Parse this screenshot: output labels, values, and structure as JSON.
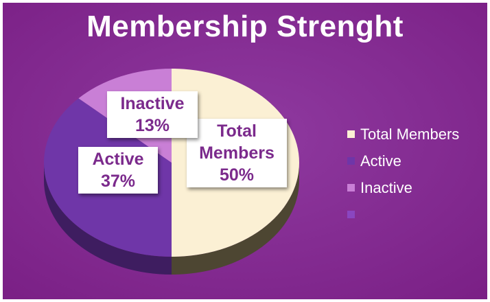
{
  "chart_data": {
    "type": "pie",
    "title": "Membership Strenght",
    "categories": [
      "Total Members",
      "Active",
      "Inactive",
      ""
    ],
    "values": [
      50,
      37,
      13,
      0
    ],
    "value_suffix": "%",
    "colors": [
      "#fbf0d4",
      "#6f36a8",
      "#c97fd6",
      "#8a46c0"
    ],
    "side_colors": [
      "#4d4632",
      "#3e1d60",
      "#6c4478",
      "#4a2470"
    ],
    "style": "3d",
    "legend": "right",
    "data_labels": true
  },
  "background": {
    "base": "#7a1f85",
    "glow": "#8f3aa0"
  }
}
